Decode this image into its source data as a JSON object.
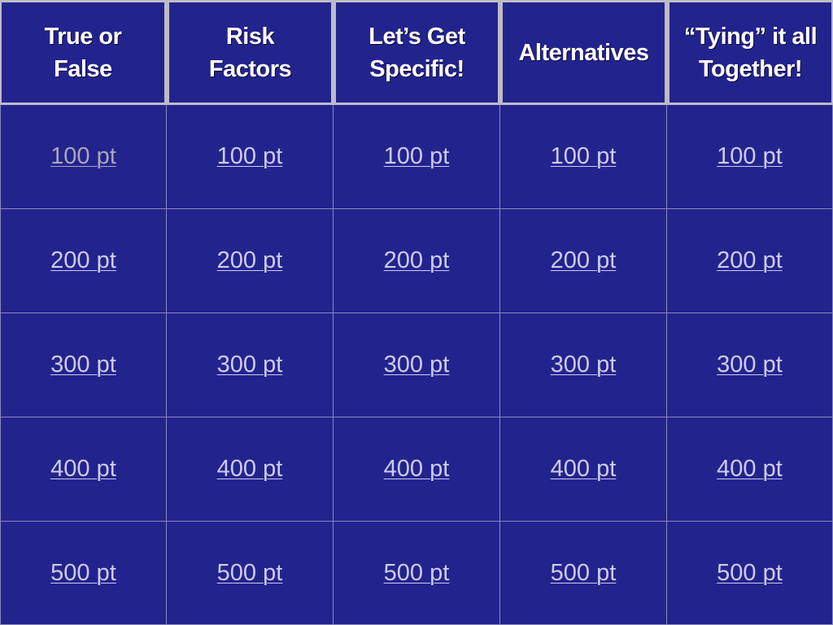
{
  "categories": [
    "True or\nFalse",
    "Risk\nFactors",
    "Let’s Get\nSpecific!",
    "Alternatives",
    "“Tying” it all\nTogether!"
  ],
  "rows": [
    [
      "100 pt",
      "100 pt",
      "100 pt",
      "100 pt",
      "100 pt"
    ],
    [
      "200 pt",
      "200 pt",
      "200 pt",
      "200 pt",
      "200 pt"
    ],
    [
      "300 pt",
      "300 pt",
      "300 pt",
      "300 pt",
      "300 pt"
    ],
    [
      "400 pt",
      "400 pt",
      "400 pt",
      "400 pt",
      "400 pt"
    ],
    [
      "500 pt",
      "500 pt",
      "500 pt",
      "500 pt",
      "500 pt"
    ]
  ],
  "colors": {
    "background": "#23238e",
    "link": "#ccccf0",
    "visited_link": "#a8a8b8",
    "header_border": "#bcbcc8"
  }
}
